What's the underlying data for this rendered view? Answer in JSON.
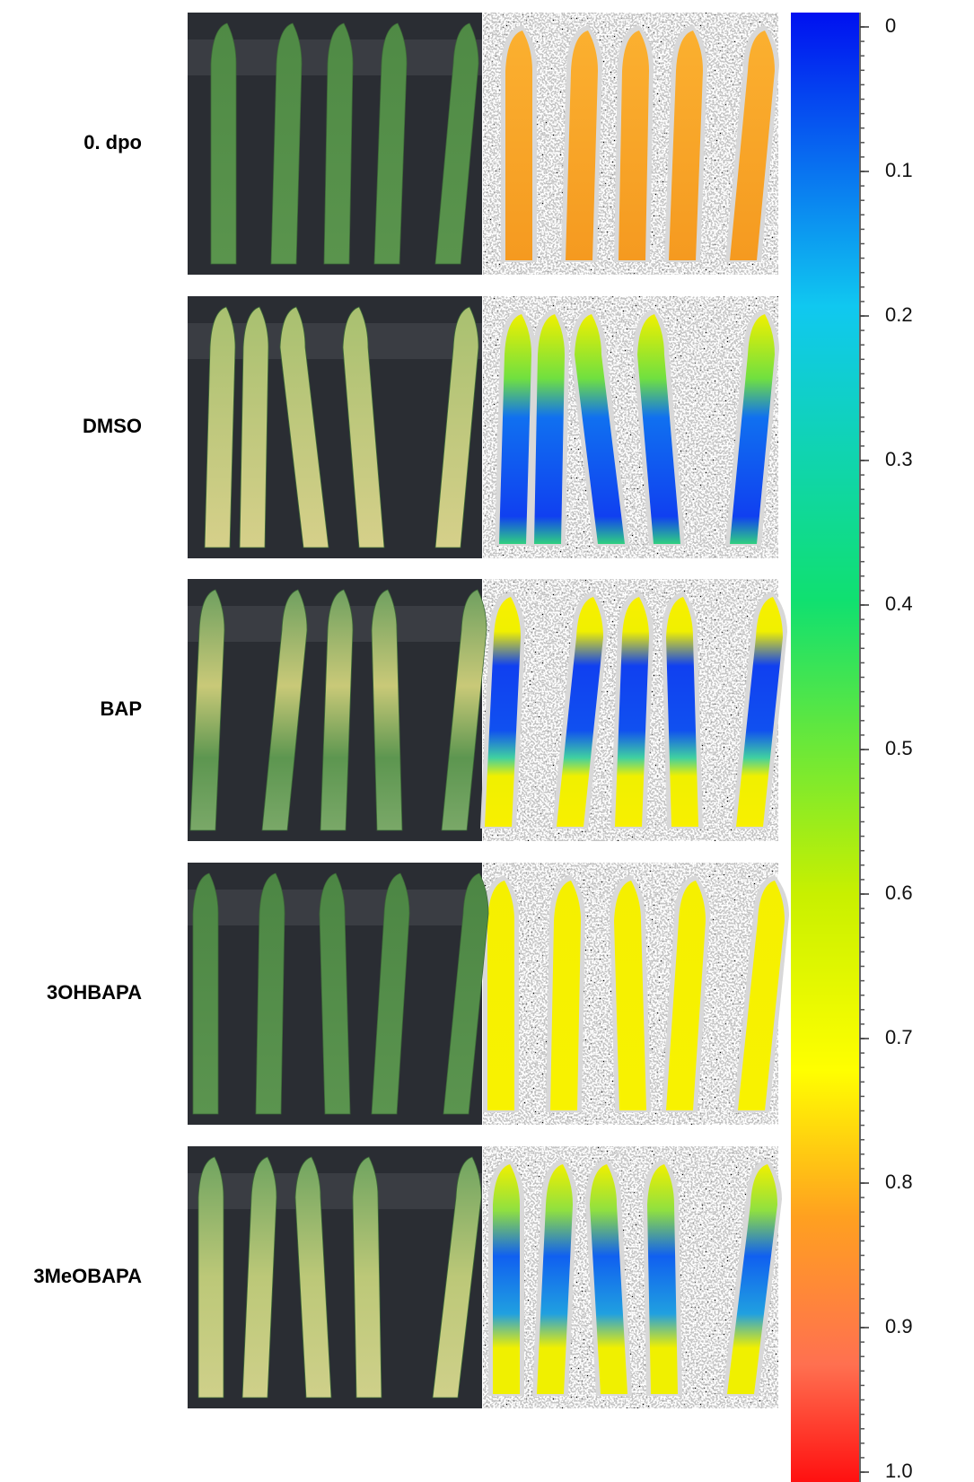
{
  "rows": [
    {
      "label": "0. dpo"
    },
    {
      "label": "DMSO"
    },
    {
      "label": "BAP"
    },
    {
      "label": "3OHBAPA"
    },
    {
      "label": "3MeOBAPA"
    }
  ],
  "colorbar": {
    "lim": [
      0,
      1
    ],
    "ticks": [
      0,
      0.1,
      0.2,
      0.3,
      0.4,
      0.5,
      0.6,
      0.7,
      0.8,
      0.9,
      {
        "value": 1,
        "label": "1.0"
      }
    ]
  }
}
